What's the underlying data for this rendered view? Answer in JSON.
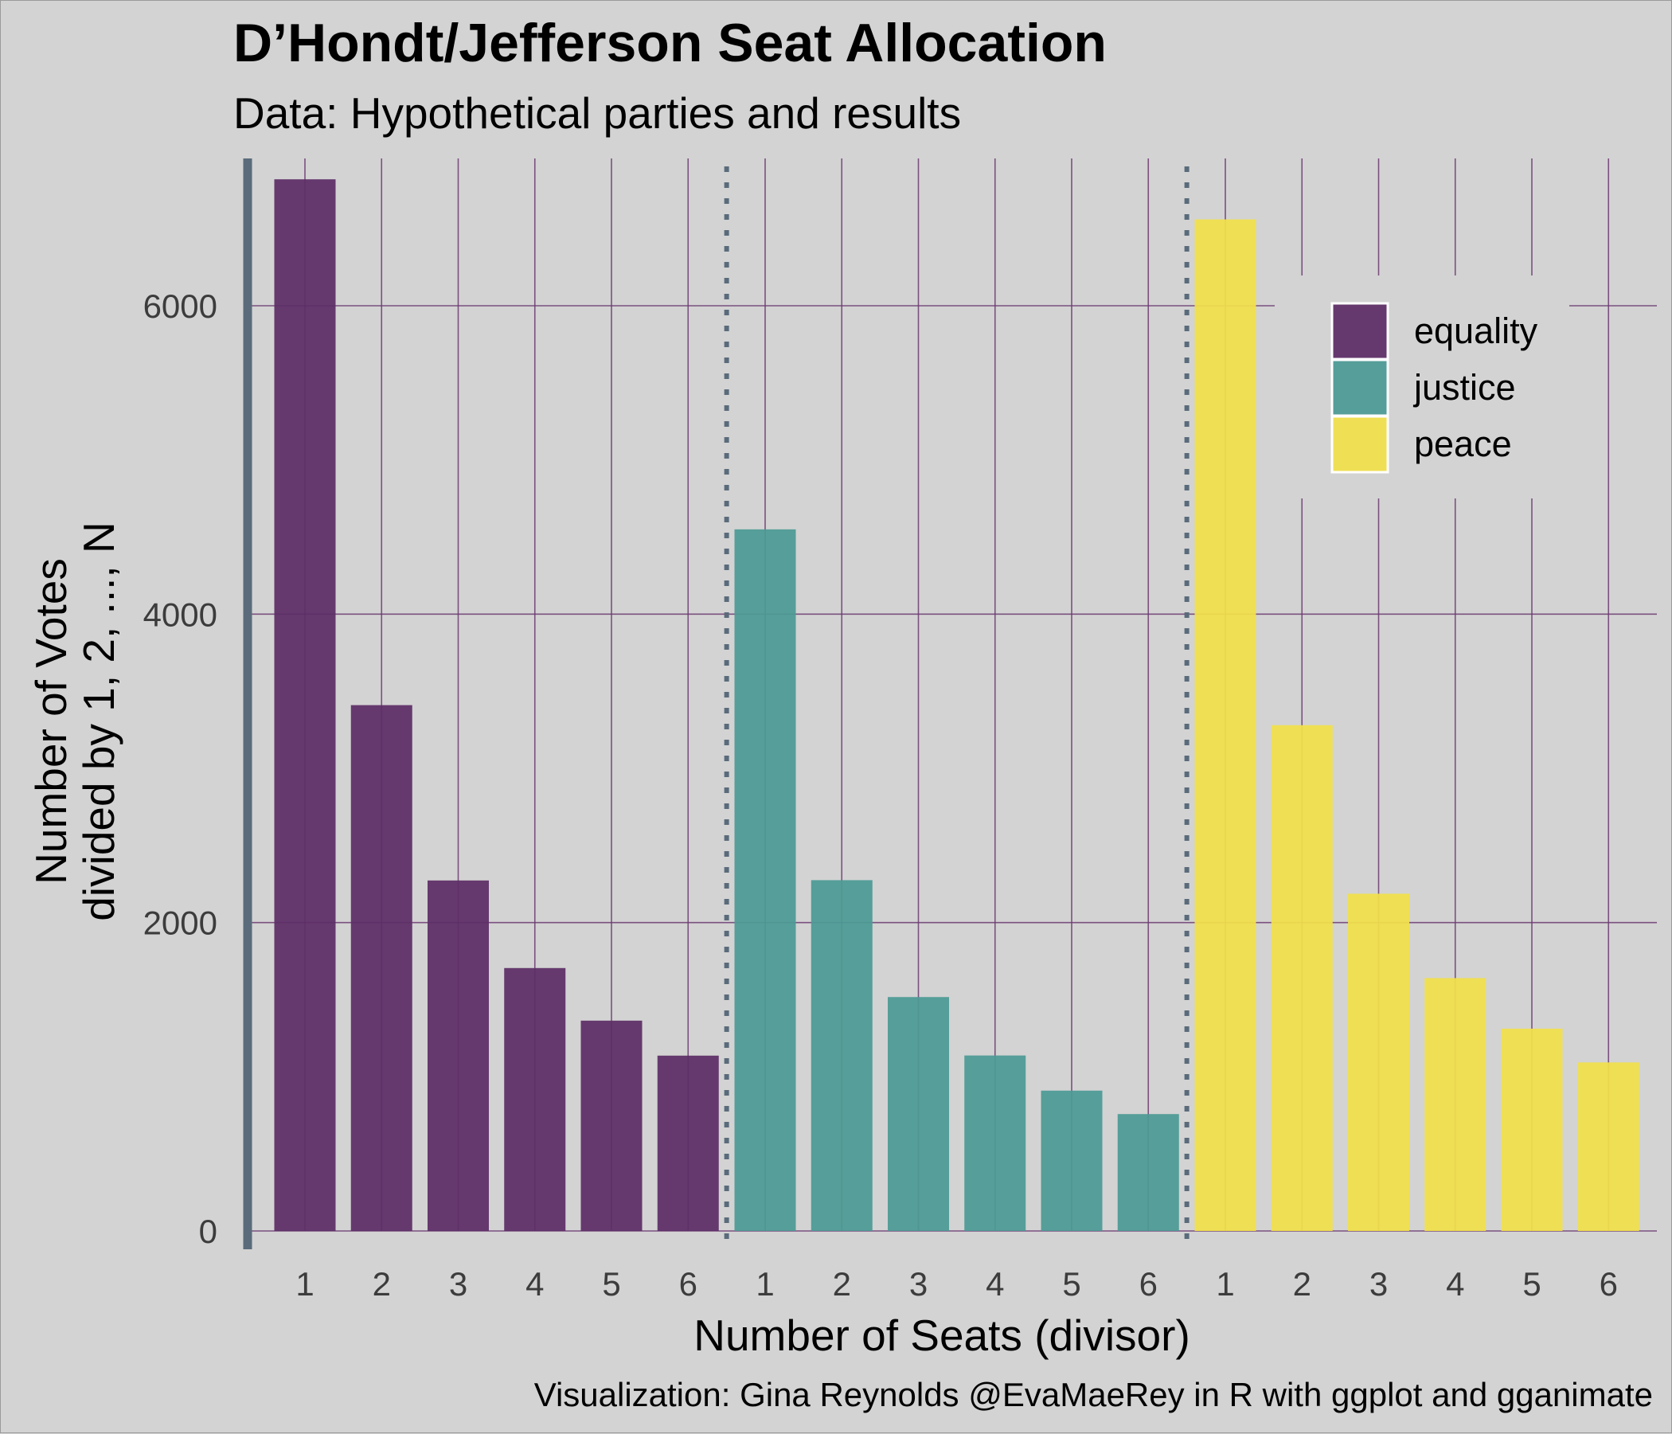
{
  "chart_data": {
    "type": "bar",
    "title": "D’Hondt/Jefferson Seat Allocation",
    "subtitle": "Data: Hypothetical parties and results",
    "xlabel": "Number of Seats (divisor)",
    "ylabel_line1": "Number of Votes",
    "ylabel_line2": "divided by 1, 2, ..., N",
    "caption": "Visualization: Gina Reynolds @EvaMaeRey in R with ggplot and gganimate",
    "ylim": [
      0,
      6800
    ],
    "yticks": [
      "0",
      "2000",
      "4000",
      "6000"
    ],
    "ytick_values": [
      0,
      2000,
      4000,
      6000
    ],
    "categories": [
      "1",
      "2",
      "3",
      "4",
      "5",
      "6"
    ],
    "legend_position": "top-right",
    "grid": true,
    "series": [
      {
        "name": "equality",
        "color": "#5c2d66",
        "values": [
          6820,
          3410,
          2273,
          1705,
          1364,
          1137
        ]
      },
      {
        "name": "justice",
        "color": "#4c9a94",
        "values": [
          4550,
          2275,
          1517,
          1138,
          910,
          758
        ]
      },
      {
        "name": "peace",
        "color": "#f1e04a",
        "values": [
          6560,
          3280,
          2187,
          1640,
          1312,
          1093
        ]
      }
    ],
    "grid_color": "#6b3a70",
    "divider_color": "#5a6b7b"
  }
}
